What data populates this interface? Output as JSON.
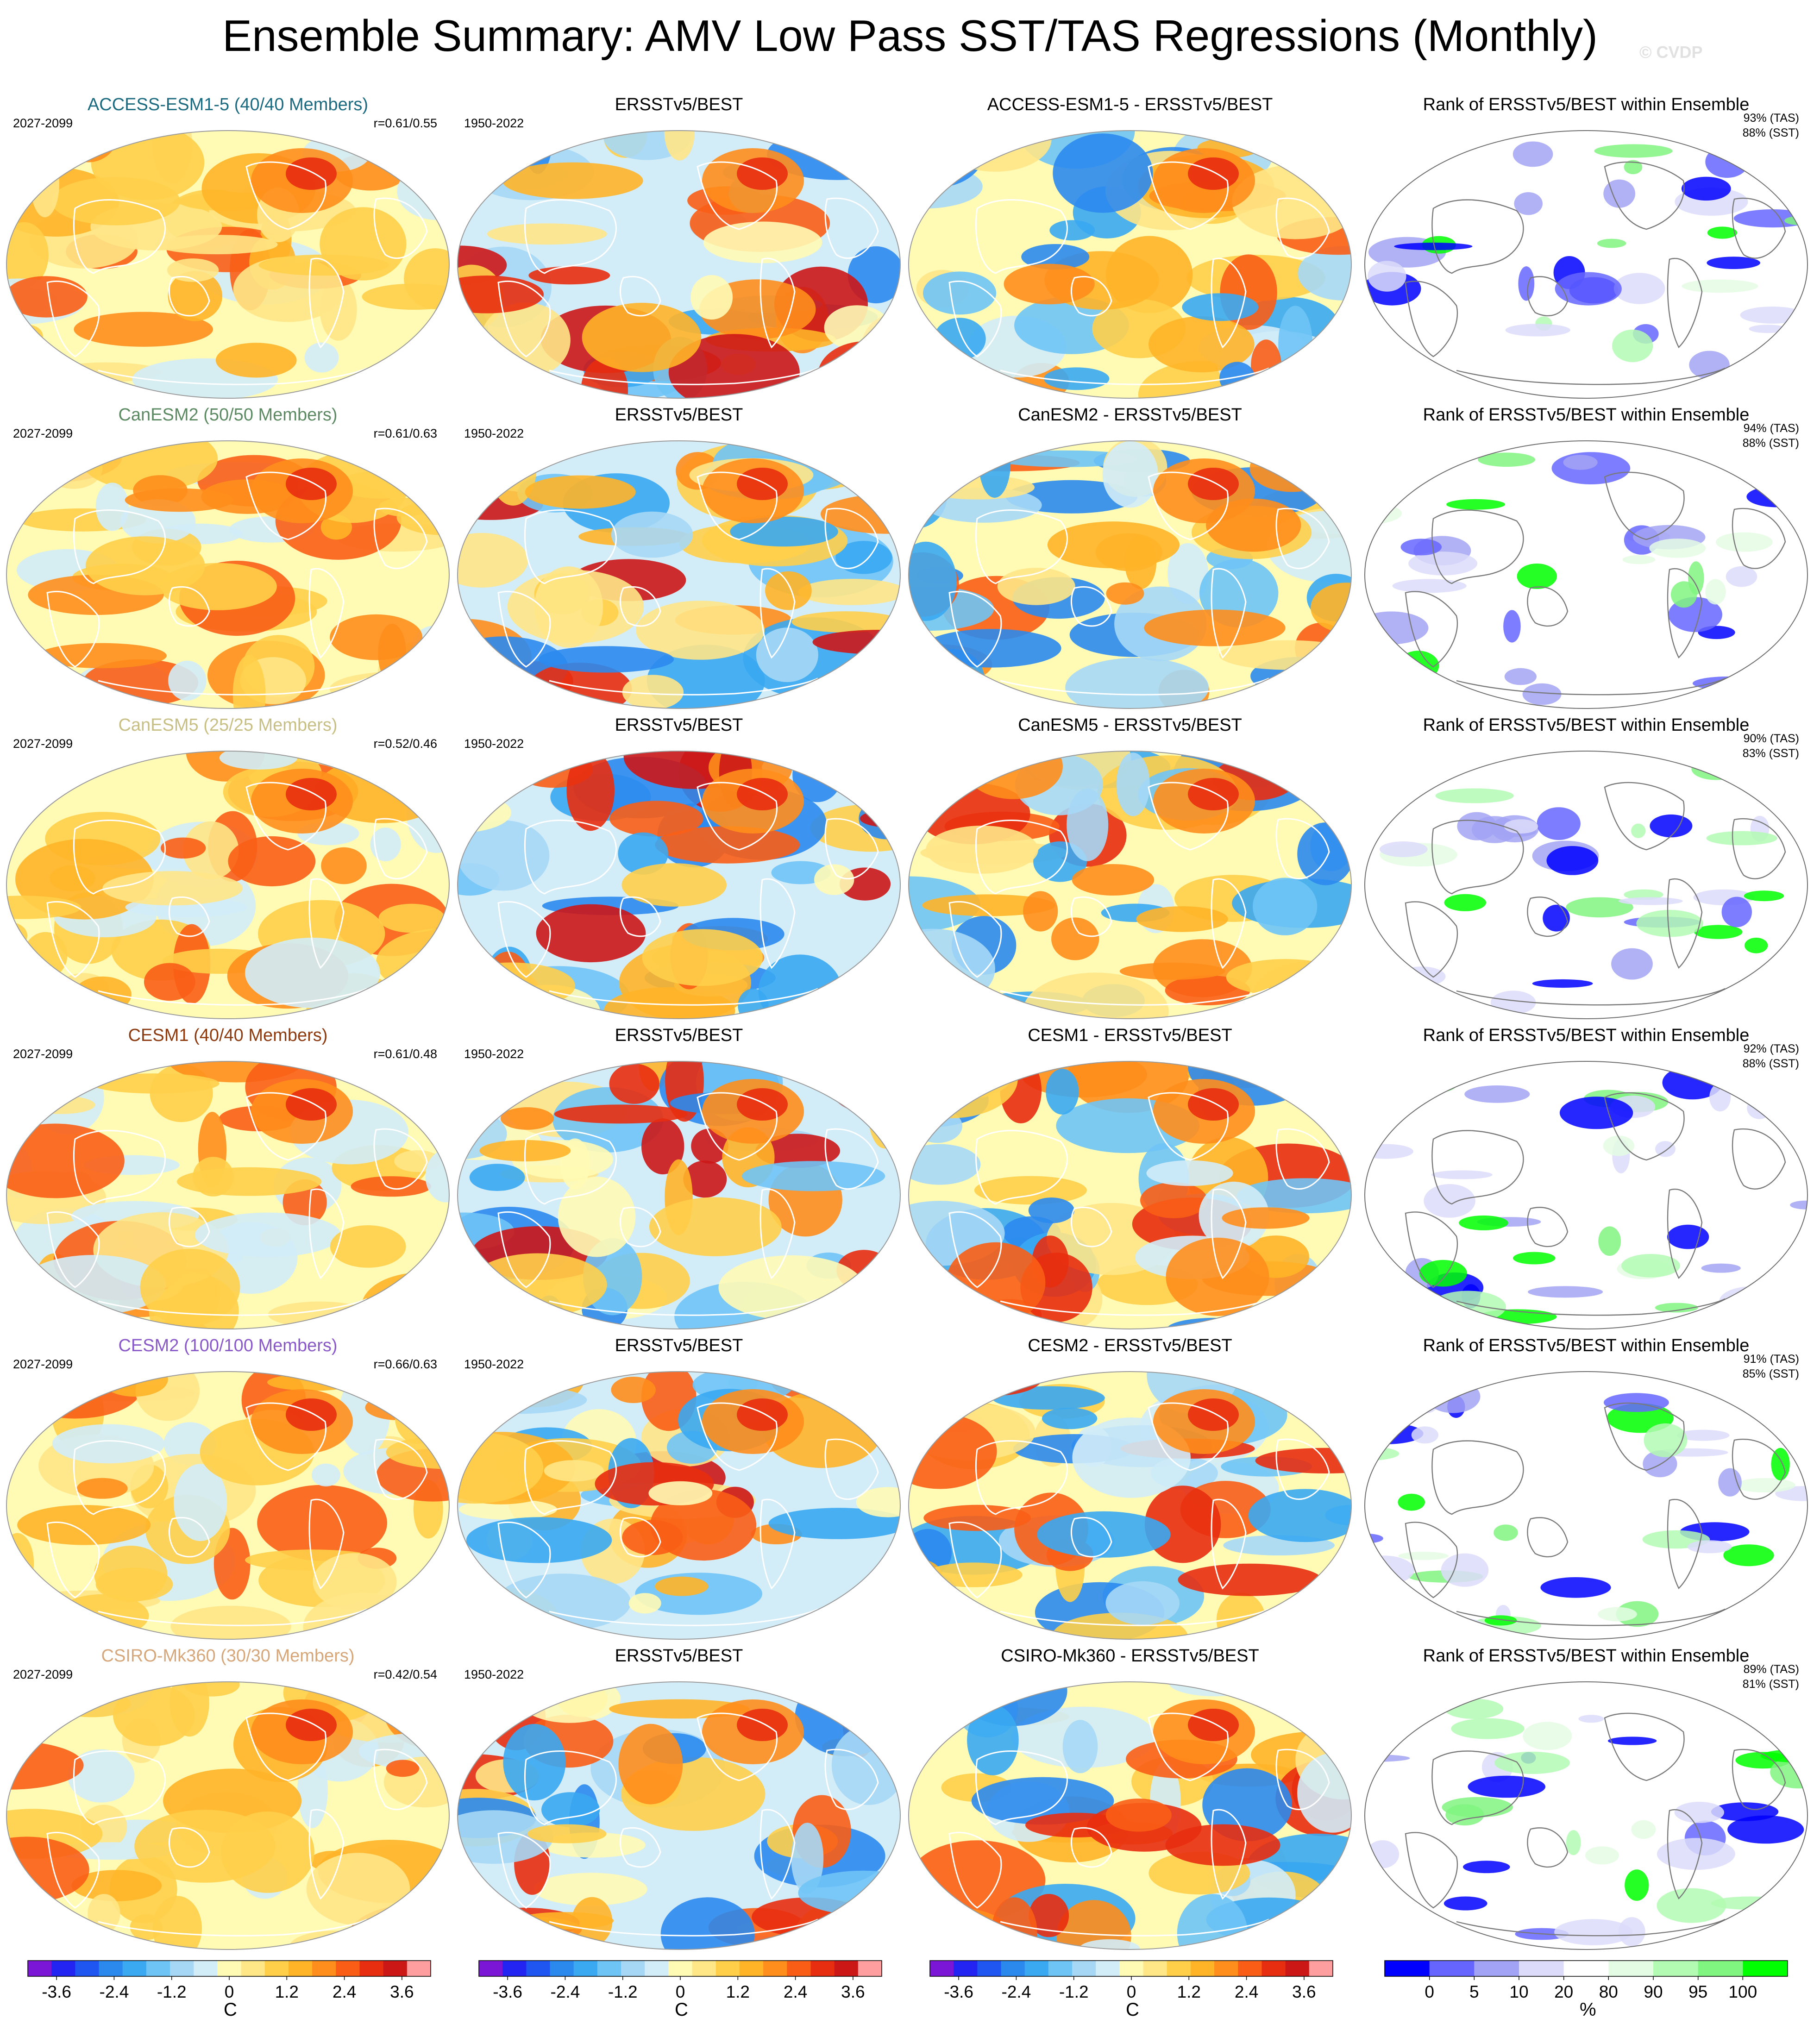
{
  "title": "Ensemble Summary: AMV Low Pass SST/TAS Regressions (Monthly)",
  "watermark": "© CVDP",
  "models": [
    {
      "name": "ACCESS-ESM1-5",
      "label": "ACCESS-ESM1-5 (40/40 Members)",
      "color": "#1b6a7f",
      "years": "2027-2099",
      "r": "r=0.61/0.55",
      "diff": "ACCESS-ESM1-5 - ERSSTv5/BEST",
      "tas": "93% (TAS)",
      "sst": "88% (SST)"
    },
    {
      "name": "CanESM2",
      "label": "CanESM2 (50/50 Members)",
      "color": "#5c8a62",
      "years": "2027-2099",
      "r": "r=0.61/0.63",
      "diff": "CanESM2 - ERSSTv5/BEST",
      "tas": "94% (TAS)",
      "sst": "88% (SST)"
    },
    {
      "name": "CanESM5",
      "label": "CanESM5 (25/25 Members)",
      "color": "#c8bf84",
      "years": "2027-2099",
      "r": "r=0.52/0.46",
      "diff": "CanESM5 - ERSSTv5/BEST",
      "tas": "90% (TAS)",
      "sst": "83% (SST)"
    },
    {
      "name": "CESM1",
      "label": "CESM1 (40/40 Members)",
      "color": "#8c3a10",
      "years": "2027-2099",
      "r": "r=0.61/0.48",
      "diff": "CESM1 - ERSSTv5/BEST",
      "tas": "92% (TAS)",
      "sst": "88% (SST)"
    },
    {
      "name": "CESM2",
      "label": "CESM2 (100/100 Members)",
      "color": "#8a59c8",
      "years": "2027-2099",
      "r": "r=0.66/0.63",
      "diff": "CESM2 - ERSSTv5/BEST",
      "tas": "91% (TAS)",
      "sst": "85% (SST)"
    },
    {
      "name": "CSIRO-Mk360",
      "label": "CSIRO-Mk360 (30/30 Members)",
      "color": "#d6a77a",
      "years": "2027-2099",
      "r": "r=0.42/0.54",
      "diff": "CSIRO-Mk360 - ERSSTv5/BEST",
      "tas": "89% (TAS)",
      "sst": "81% (SST)"
    }
  ],
  "obs_title": "ERSSTv5/BEST",
  "obs_years": "1950-2022",
  "rank_title": "Rank of ERSSTv5/BEST within Ensemble",
  "colorbar_temp": {
    "unit": "C",
    "tick_labels": [
      "-3.6",
      "-2.4",
      "-1.2",
      "0",
      "1.2",
      "2.4",
      "3.6"
    ],
    "tick_values": [
      -3.6,
      -2.4,
      -1.2,
      0,
      1.2,
      2.4,
      3.6
    ],
    "range": [
      -4.2,
      4.2
    ],
    "colors": [
      "#7c16d6",
      "#2323f2",
      "#1f55f0",
      "#2b89ee",
      "#3aa9f2",
      "#6fc4f6",
      "#a6d8f6",
      "#d2ecf8",
      "#fffbb5",
      "#ffe687",
      "#ffcf4a",
      "#ffb428",
      "#ff8e1c",
      "#fa5e16",
      "#e82e10",
      "#cc1717",
      "#ff9e9e"
    ]
  },
  "colorbar_rank": {
    "unit": "%",
    "tick_labels": [
      "0",
      "5",
      "10",
      "20",
      "80",
      "90",
      "95",
      "100"
    ],
    "colors": [
      "#0000ff",
      "#6666ff",
      "#a3a3f5",
      "#dcdcfa",
      "#ffffff",
      "#e4fbe4",
      "#b3fab3",
      "#80f580",
      "#00ff00"
    ]
  },
  "map_colors": {
    "land_outline": "#ffffff",
    "rank_outline": "#7a7a7a",
    "warm": "#ffe687",
    "cool": "#a6d8f6",
    "pale": "#fffbb5"
  }
}
